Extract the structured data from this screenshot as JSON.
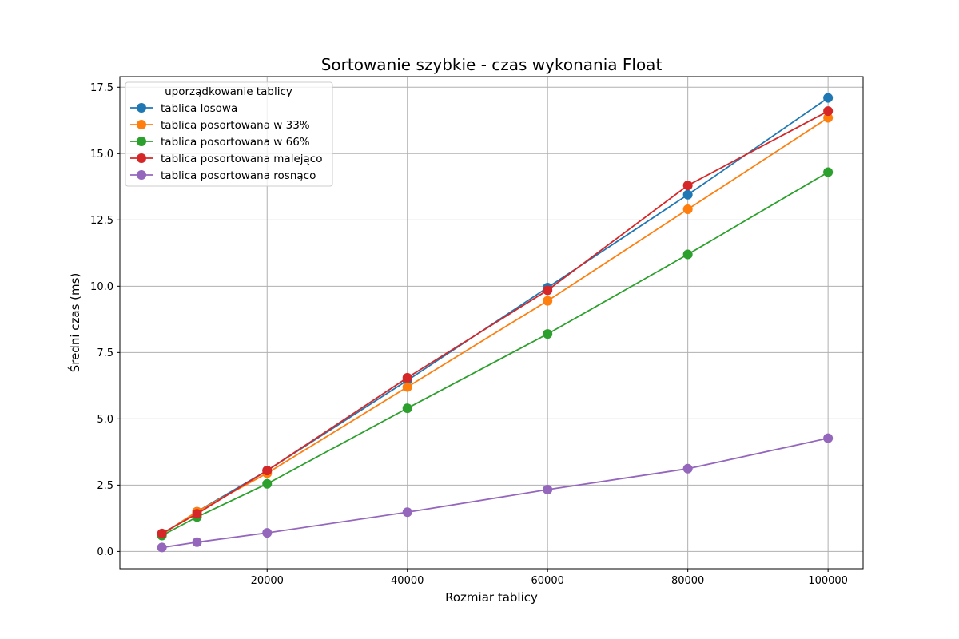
{
  "chart_data": {
    "type": "line",
    "title": "Sortowanie szybkie - czas wykonania Float",
    "xlabel": "Rozmiar tablicy",
    "ylabel": "Średni czas (ms)",
    "xlim": [
      -1000,
      105000
    ],
    "ylim": [
      -0.65,
      17.9
    ],
    "xticks": [
      20000,
      40000,
      60000,
      80000,
      100000
    ],
    "yticks": [
      0.0,
      2.5,
      5.0,
      7.5,
      10.0,
      12.5,
      15.0,
      17.5
    ],
    "xtick_labels": [
      "20000",
      "40000",
      "60000",
      "80000",
      "100000"
    ],
    "ytick_labels": [
      "0.0",
      "2.5",
      "5.0",
      "7.5",
      "10.0",
      "12.5",
      "15.0",
      "17.5"
    ],
    "grid": true,
    "legend_title": "uporządkowanie tablicy",
    "legend_position": "top-left",
    "x": [
      5000,
      10000,
      20000,
      40000,
      60000,
      80000,
      100000
    ],
    "series": [
      {
        "name": "tablica losowa",
        "color": "#1f77b4",
        "values": [
          0.65,
          1.5,
          3.05,
          6.45,
          9.95,
          13.45,
          17.1
        ]
      },
      {
        "name": "tablica posortowana w 33%",
        "color": "#ff7f0e",
        "values": [
          0.65,
          1.5,
          2.95,
          6.2,
          9.45,
          12.9,
          16.35
        ]
      },
      {
        "name": "tablica posortowana w 66%",
        "color": "#2ca02c",
        "values": [
          0.6,
          1.3,
          2.55,
          5.4,
          8.2,
          11.2,
          14.3
        ]
      },
      {
        "name": "tablica posortowana malejąco",
        "color": "#d62728",
        "values": [
          0.68,
          1.42,
          3.05,
          6.55,
          9.85,
          13.8,
          16.6
        ]
      },
      {
        "name": "tablica posortowana rosnąco",
        "color": "#9467bd",
        "values": [
          0.15,
          0.35,
          0.7,
          1.48,
          2.33,
          3.12,
          4.27
        ]
      }
    ]
  }
}
